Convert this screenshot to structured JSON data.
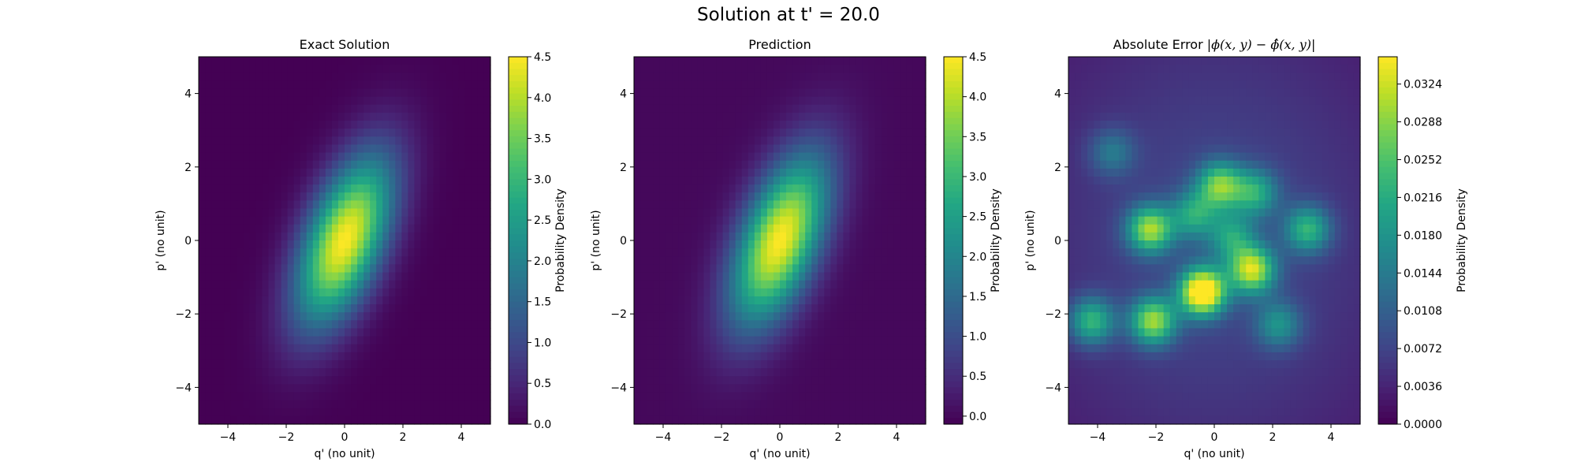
{
  "suptitle": "Solution at t' = 20.0",
  "colormap": "viridis",
  "chart_data": [
    {
      "type": "heatmap",
      "title": "Exact Solution",
      "xlabel": "q' (no unit)",
      "ylabel": "p' (no unit)",
      "xlim": [
        -5,
        5
      ],
      "ylim": [
        -5,
        5
      ],
      "xticks": [
        "−4",
        "−2",
        "0",
        "2",
        "4"
      ],
      "yticks": [
        "−4",
        "−2",
        "0",
        "2",
        "4"
      ],
      "colorbar_label": "Probability Density",
      "colorbar_range": [
        0,
        4.5
      ],
      "colorbar_ticks": [
        "0.0",
        "0.5",
        "1.0",
        "1.5",
        "2.0",
        "2.5",
        "3.0",
        "3.5",
        "4.0",
        "4.5"
      ],
      "distribution": {
        "center": [
          0,
          0
        ],
        "sigma_q": 1.15,
        "sigma_p": 1.6,
        "correlation": 0.55,
        "peak": 4.5
      }
    },
    {
      "type": "heatmap",
      "title": "Prediction",
      "xlabel": "q' (no unit)",
      "ylabel": "p' (no unit)",
      "xlim": [
        -5,
        5
      ],
      "ylim": [
        -5,
        5
      ],
      "xticks": [
        "−4",
        "−2",
        "0",
        "2",
        "4"
      ],
      "yticks": [
        "−4",
        "−2",
        "0",
        "2",
        "4"
      ],
      "colorbar_label": "Probability Density",
      "colorbar_range": [
        -0.1,
        4.5
      ],
      "colorbar_ticks": [
        "0.0",
        "0.5",
        "1.0",
        "1.5",
        "2.0",
        "2.5",
        "3.0",
        "3.5",
        "4.0",
        "4.5"
      ],
      "distribution": {
        "center": [
          0,
          0
        ],
        "sigma_q": 1.15,
        "sigma_p": 1.6,
        "correlation": 0.55,
        "peak": 4.5
      }
    },
    {
      "type": "heatmap",
      "title": "Absolute Error",
      "title_math": "|ϕ(x, y) − ϕ̂(x, y)|",
      "xlabel": "q' (no unit)",
      "ylabel": "p' (no unit)",
      "xlim": [
        -5,
        5
      ],
      "ylim": [
        -5,
        5
      ],
      "xticks": [
        "−4",
        "−2",
        "0",
        "2",
        "4"
      ],
      "yticks": [
        "−4",
        "−2",
        "0",
        "2",
        "4"
      ],
      "colorbar_label": "Probability Density",
      "colorbar_range": [
        0,
        0.035
      ],
      "colorbar_ticks": [
        "0.0000",
        "0.0036",
        "0.0072",
        "0.0108",
        "0.0144",
        "0.0180",
        "0.0216",
        "0.0252",
        "0.0288",
        "0.0324"
      ],
      "error_blobs": [
        {
          "q": -0.4,
          "p": -1.4,
          "value": 0.035
        },
        {
          "q": 1.3,
          "p": -0.8,
          "value": 0.026
        },
        {
          "q": -2.2,
          "p": 0.3,
          "value": 0.024
        },
        {
          "q": -2.1,
          "p": -2.2,
          "value": 0.024
        },
        {
          "q": 0.2,
          "p": 1.5,
          "value": 0.021
        },
        {
          "q": -4.2,
          "p": -2.2,
          "value": 0.018
        },
        {
          "q": 3.2,
          "p": 0.3,
          "value": 0.017
        },
        {
          "q": 1.4,
          "p": 1.3,
          "value": 0.015
        },
        {
          "q": -0.7,
          "p": 0.7,
          "value": 0.014
        },
        {
          "q": 0.6,
          "p": 0.1,
          "value": 0.013
        },
        {
          "q": 2.2,
          "p": -2.3,
          "value": 0.012
        },
        {
          "q": -3.5,
          "p": 2.4,
          "value": 0.009
        }
      ],
      "error_background": 0.0075
    }
  ]
}
